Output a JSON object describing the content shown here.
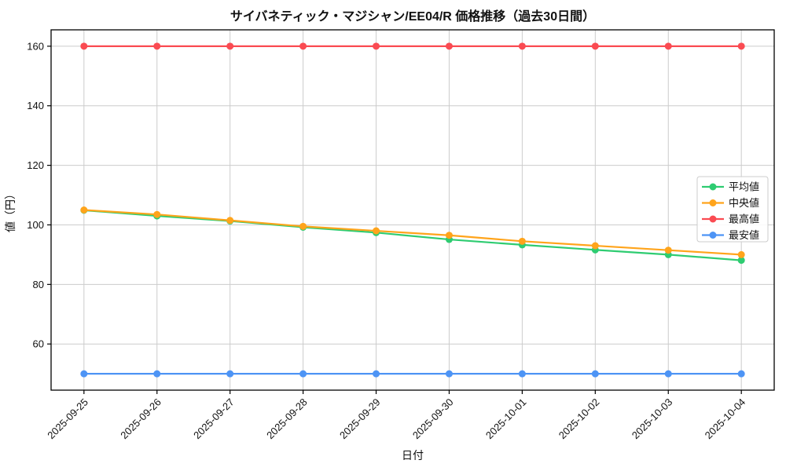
{
  "chart_data": {
    "type": "line",
    "title": "サイバネティック・マジシャン/EE04/R 価格推移（過去30日間）",
    "xlabel": "日付",
    "ylabel": "値（円）",
    "categories": [
      "2025-09-25",
      "2025-09-26",
      "2025-09-27",
      "2025-09-28",
      "2025-09-29",
      "2025-09-30",
      "2025-10-01",
      "2025-10-02",
      "2025-10-03",
      "2025-10-04"
    ],
    "series": [
      {
        "key": "mean",
        "name": "平均値",
        "color": "#2ECC71",
        "values": [
          104.9,
          103.0,
          101.3,
          99.2,
          97.4,
          95.1,
          93.3,
          91.6,
          90.0,
          88.1
        ]
      },
      {
        "key": "median",
        "name": "中央値",
        "color": "#FFA41B",
        "values": [
          105.0,
          103.5,
          101.5,
          99.5,
          98.0,
          96.5,
          94.5,
          93.0,
          91.5,
          90.0
        ]
      },
      {
        "key": "max",
        "name": "最高値",
        "color": "#FA4B52",
        "values": [
          160,
          160,
          160,
          160,
          160,
          160,
          160,
          160,
          160,
          160
        ]
      },
      {
        "key": "min",
        "name": "最安値",
        "color": "#4D94F5",
        "values": [
          50,
          50,
          50,
          50,
          50,
          50,
          50,
          50,
          50,
          50
        ]
      }
    ],
    "yticks": [
      60,
      80,
      100,
      120,
      140,
      160
    ],
    "ylim": [
      44.5,
      165.5
    ],
    "grid": true,
    "grid_color": "#CCCCCC",
    "legend": {
      "position": "upper right",
      "labels": [
        "平均値",
        "中央値",
        "最高値",
        "最安値"
      ]
    },
    "background": "#FFFFFF"
  }
}
